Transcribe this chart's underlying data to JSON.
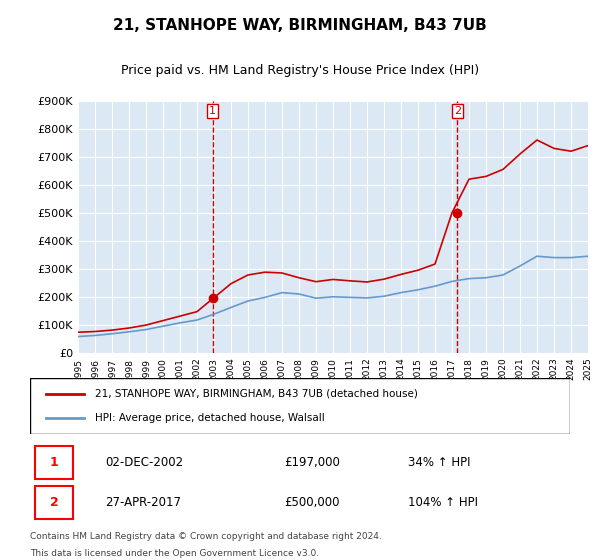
{
  "title": "21, STANHOPE WAY, BIRMINGHAM, B43 7UB",
  "subtitle": "Price paid vs. HM Land Registry's House Price Index (HPI)",
  "ylabel": "",
  "ylim": [
    0,
    900000
  ],
  "yticks": [
    0,
    100000,
    200000,
    300000,
    400000,
    500000,
    600000,
    700000,
    800000,
    900000
  ],
  "ytick_labels": [
    "£0",
    "£100K",
    "£200K",
    "£300K",
    "£400K",
    "£500K",
    "£600K",
    "£700K",
    "£800K",
    "£900K"
  ],
  "x_start_year": 1995,
  "x_end_year": 2025,
  "background_color": "#ffffff",
  "plot_bg_color": "#dce9f5",
  "grid_color": "#ffffff",
  "red_line_color": "#cc0000",
  "blue_line_color": "#6699cc",
  "purchase1_date": "02-DEC-2002",
  "purchase1_year": 2002.92,
  "purchase1_price": 197000,
  "purchase1_label": "34% ↑ HPI",
  "purchase2_date": "27-APR-2017",
  "purchase2_year": 2017.32,
  "purchase2_price": 500000,
  "purchase2_label": "104% ↑ HPI",
  "legend_line1": "21, STANHOPE WAY, BIRMINGHAM, B43 7UB (detached house)",
  "legend_line2": "HPI: Average price, detached house, Walsall",
  "footer1": "Contains HM Land Registry data © Crown copyright and database right 2024.",
  "footer2": "This data is licensed under the Open Government Licence v3.0.",
  "hpi_years": [
    1995,
    1996,
    1997,
    1998,
    1999,
    2000,
    2001,
    2002,
    2003,
    2004,
    2005,
    2006,
    2007,
    2008,
    2009,
    2010,
    2011,
    2012,
    2013,
    2014,
    2015,
    2016,
    2017,
    2018,
    2019,
    2020,
    2021,
    2022,
    2023,
    2024,
    2025
  ],
  "hpi_values": [
    58000,
    62000,
    68000,
    75000,
    83000,
    95000,
    107000,
    117000,
    138000,
    162000,
    185000,
    198000,
    215000,
    210000,
    195000,
    200000,
    198000,
    196000,
    202000,
    215000,
    225000,
    238000,
    255000,
    265000,
    268000,
    278000,
    310000,
    345000,
    340000,
    340000,
    345000
  ],
  "red_years": [
    1995,
    1996,
    1997,
    1998,
    1999,
    2000,
    2001,
    2002,
    2003,
    2004,
    2005,
    2006,
    2007,
    2008,
    2009,
    2010,
    2011,
    2012,
    2013,
    2014,
    2015,
    2016,
    2017,
    2018,
    2019,
    2020,
    2021,
    2022,
    2023,
    2024,
    2025
  ],
  "red_values": [
    73500,
    76000,
    81000,
    88500,
    99000,
    115000,
    131000,
    147000,
    197000,
    247000,
    278000,
    288000,
    285000,
    268000,
    254000,
    262000,
    257000,
    253000,
    263000,
    280000,
    295000,
    317000,
    500000,
    620000,
    630000,
    655000,
    710000,
    760000,
    730000,
    720000,
    740000
  ]
}
